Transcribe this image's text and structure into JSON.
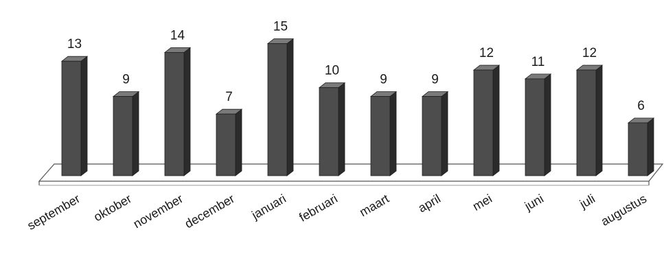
{
  "chart_data": {
    "type": "bar",
    "categories": [
      "september",
      "oktober",
      "november",
      "december",
      "januari",
      "februari",
      "maart",
      "april",
      "mei",
      "juni",
      "juli",
      "augustus"
    ],
    "values": [
      13,
      9,
      14,
      7,
      15,
      10,
      9,
      9,
      12,
      11,
      12,
      6
    ],
    "data_labels": [
      "13",
      "9",
      "14",
      "7",
      "15",
      "10",
      "9",
      "9",
      "12",
      "11",
      "12",
      "6"
    ],
    "title": "",
    "xlabel": "",
    "ylabel": "",
    "ylim": [
      0,
      15
    ],
    "grid": false,
    "legend": "none",
    "style": "3d-column",
    "colors": {
      "bar_front": "#4d4d4d",
      "bar_side": "#2b2b2b",
      "bar_top": "#7a7a7a",
      "floor": "#ffffff",
      "floor_edge": "#555555"
    }
  }
}
